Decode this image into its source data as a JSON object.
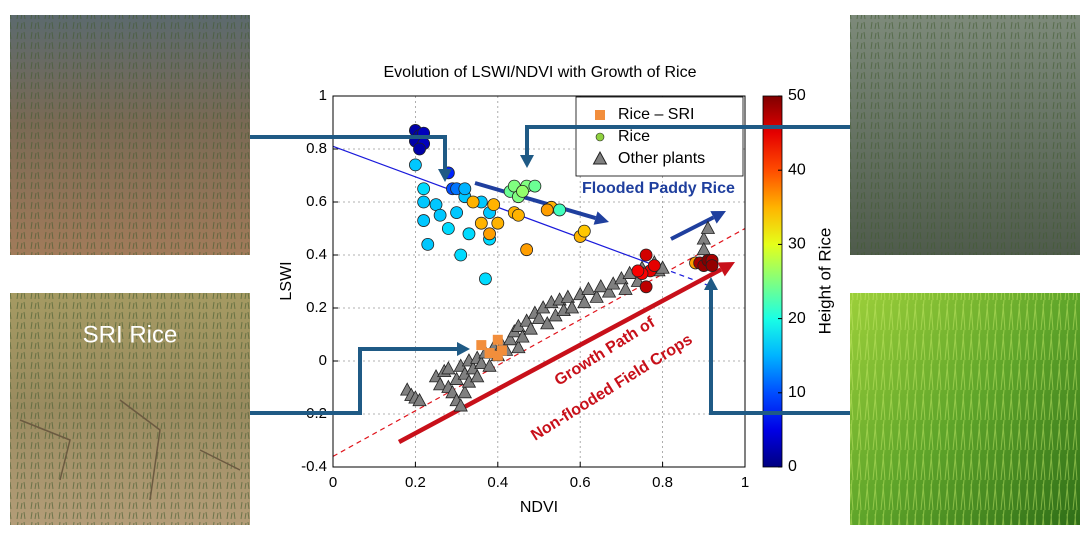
{
  "chart_data": {
    "type": "scatter",
    "title": "Evolution of LSWI/NDVI with Growth of Rice",
    "xlabel": "NDVI",
    "ylabel": "LSWI",
    "xlim": [
      0,
      1
    ],
    "ylim": [
      -0.4,
      1
    ],
    "xticks": [
      0,
      0.2,
      0.4,
      0.6,
      0.8,
      1
    ],
    "yticks": [
      -0.4,
      -0.2,
      0,
      0.2,
      0.4,
      0.6,
      0.8,
      1
    ],
    "grid": true,
    "legend": "upper right",
    "colorbar": {
      "label": "Height of Rice",
      "lim": [
        0,
        50
      ],
      "ticks": [
        0,
        10,
        20,
        30,
        40,
        50
      ],
      "colormap": "jet"
    },
    "series": [
      {
        "name": "Rice – SRI",
        "marker": "square",
        "color": "#f28e3c",
        "x": [
          0.36,
          0.4,
          0.38,
          0.41,
          0.4
        ],
        "y": [
          0.06,
          0.08,
          0.03,
          0.04,
          0.02
        ]
      },
      {
        "name": "Rice",
        "marker": "circle",
        "color": "#8fd13f",
        "x": [
          0.2,
          0.21,
          0.22,
          0.2,
          0.22,
          0.21,
          0.28,
          0.29,
          0.3,
          0.2,
          0.22,
          0.22,
          0.22,
          0.23,
          0.25,
          0.26,
          0.28,
          0.3,
          0.31,
          0.32,
          0.33,
          0.36,
          0.37,
          0.38,
          0.38,
          0.32,
          0.34,
          0.36,
          0.39,
          0.38,
          0.4,
          0.44,
          0.45,
          0.47,
          0.53,
          0.52,
          0.6,
          0.61,
          0.88,
          0.43,
          0.44,
          0.45,
          0.47,
          0.49,
          0.55,
          0.46,
          0.76,
          0.77,
          0.75,
          0.76,
          0.74,
          0.78,
          0.89,
          0.9,
          0.91,
          0.92,
          0.92
        ],
        "y": [
          0.87,
          0.85,
          0.86,
          0.83,
          0.82,
          0.8,
          0.71,
          0.65,
          0.65,
          0.74,
          0.65,
          0.6,
          0.53,
          0.44,
          0.59,
          0.55,
          0.5,
          0.56,
          0.4,
          0.62,
          0.48,
          0.6,
          0.31,
          0.46,
          0.56,
          0.65,
          0.6,
          0.52,
          0.59,
          0.48,
          0.52,
          0.56,
          0.55,
          0.42,
          0.58,
          0.57,
          0.47,
          0.49,
          0.37,
          0.64,
          0.66,
          0.62,
          0.66,
          0.66,
          0.57,
          0.64,
          0.4,
          0.34,
          0.33,
          0.28,
          0.34,
          0.36,
          0.37,
          0.36,
          0.38,
          0.38,
          0.36
        ],
        "height": [
          2,
          2,
          3,
          2,
          3,
          2,
          8,
          10,
          12,
          16,
          17,
          16,
          16,
          16,
          16,
          16,
          17,
          16,
          17,
          16,
          17,
          16,
          17,
          17,
          16,
          15,
          35,
          35,
          35,
          36,
          35,
          35,
          35,
          36,
          35,
          36,
          35,
          34,
          36,
          24,
          25,
          25,
          25,
          24,
          22,
          26,
          46,
          45,
          44,
          47,
          44,
          45,
          48,
          49,
          50,
          48,
          49
        ]
      },
      {
        "name": "Other plants",
        "marker": "triangle",
        "color": "#808080",
        "x": [
          0.18,
          0.19,
          0.2,
          0.21,
          0.25,
          0.26,
          0.27,
          0.28,
          0.28,
          0.29,
          0.3,
          0.3,
          0.31,
          0.31,
          0.32,
          0.32,
          0.33,
          0.33,
          0.34,
          0.35,
          0.35,
          0.36,
          0.37,
          0.38,
          0.39,
          0.4,
          0.41,
          0.42,
          0.43,
          0.44,
          0.45,
          0.45,
          0.46,
          0.47,
          0.48,
          0.49,
          0.5,
          0.51,
          0.52,
          0.53,
          0.54,
          0.55,
          0.56,
          0.57,
          0.58,
          0.6,
          0.61,
          0.62,
          0.64,
          0.65,
          0.67,
          0.68,
          0.7,
          0.71,
          0.72,
          0.74,
          0.75,
          0.78,
          0.79,
          0.8,
          0.9,
          0.91,
          0.9
        ],
        "y": [
          -0.11,
          -0.13,
          -0.14,
          -0.15,
          -0.06,
          -0.09,
          -0.04,
          -0.1,
          -0.03,
          -0.12,
          -0.07,
          -0.15,
          -0.02,
          -0.17,
          -0.05,
          -0.12,
          -0.08,
          0.0,
          -0.03,
          -0.06,
          0.01,
          -0.01,
          0.03,
          -0.02,
          0.05,
          0.02,
          0.06,
          0.04,
          0.08,
          0.11,
          0.05,
          0.13,
          0.09,
          0.15,
          0.12,
          0.18,
          0.16,
          0.2,
          0.14,
          0.22,
          0.17,
          0.23,
          0.19,
          0.24,
          0.2,
          0.25,
          0.22,
          0.27,
          0.24,
          0.28,
          0.26,
          0.29,
          0.31,
          0.27,
          0.33,
          0.3,
          0.35,
          0.37,
          0.34,
          0.35,
          0.46,
          0.5,
          0.42
        ]
      }
    ],
    "fit_lines": [
      {
        "color": "#1a1adb",
        "dash": false,
        "x": [
          0,
          0.8
        ],
        "y": [
          0.81,
          0.35
        ]
      },
      {
        "color": "#1a1adb",
        "dash": true,
        "x": [
          0.8,
          0.92
        ],
        "y": [
          0.35,
          0.28
        ]
      },
      {
        "color": "#e0141c",
        "dash": true,
        "x": [
          0,
          1
        ],
        "y": [
          -0.36,
          0.5
        ]
      }
    ],
    "annotations": [
      "Flooded Paddy Rice",
      "Growth Path of",
      "Non-flooded Field Crops"
    ],
    "photo_label": "SRI Rice"
  }
}
